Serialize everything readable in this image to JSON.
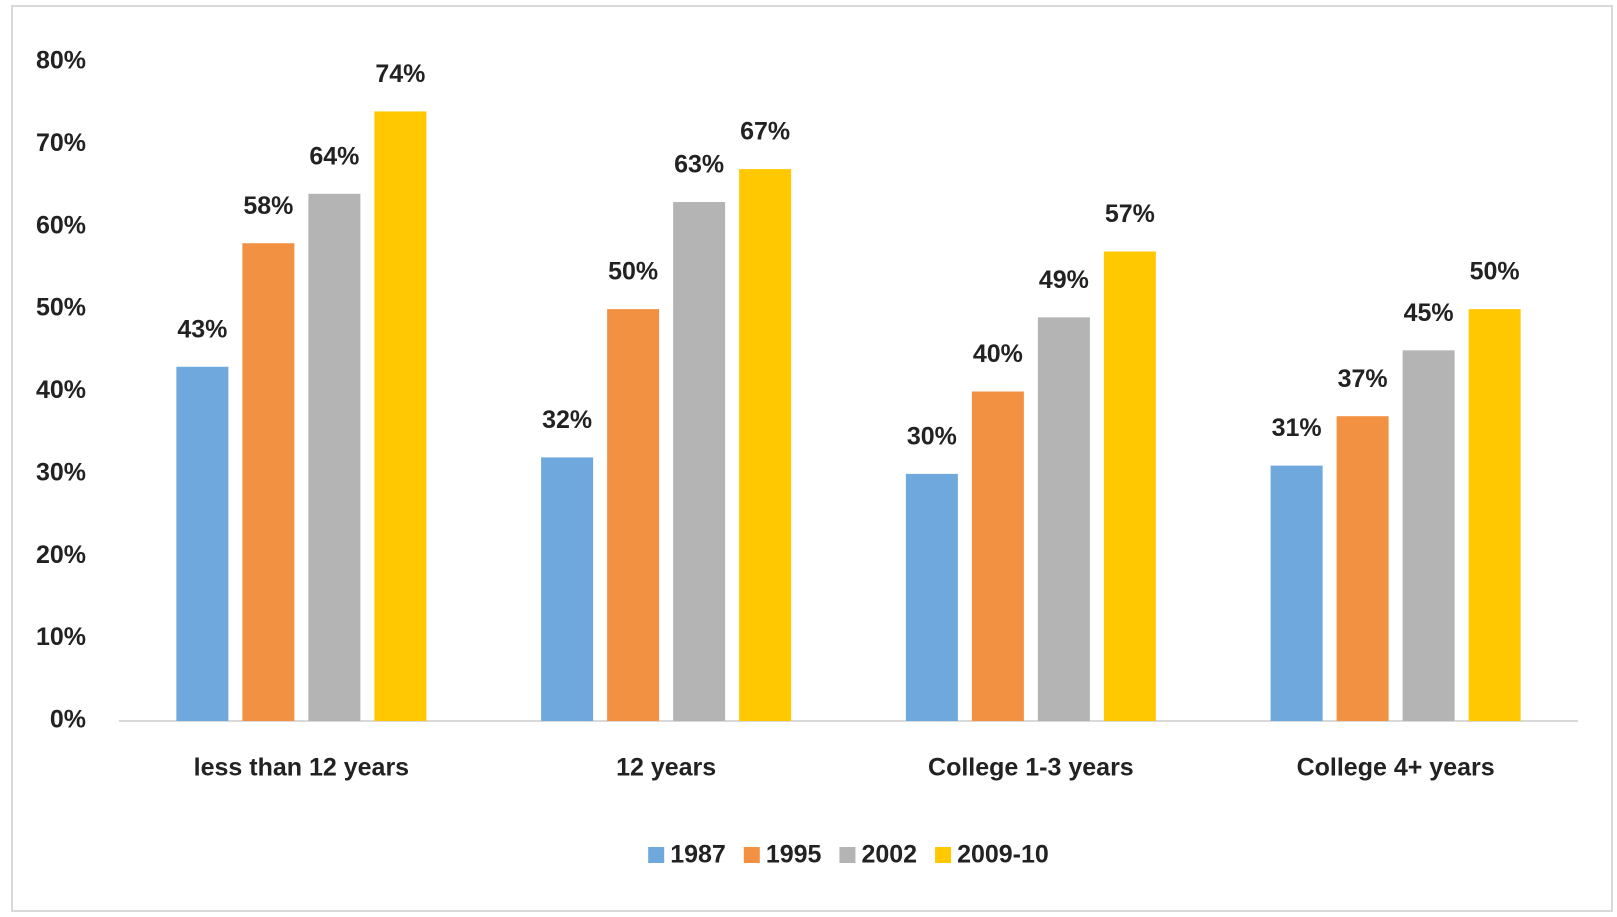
{
  "chart_data": {
    "type": "bar",
    "categories": [
      "less than 12 years",
      "12 years",
      "College 1-3 years",
      "College 4+ years"
    ],
    "series": [
      {
        "name": "1987",
        "color": "#6fa8dc",
        "values": [
          43,
          32,
          30,
          31
        ],
        "value_labels": [
          "43%",
          "32%",
          "30%",
          "31%"
        ]
      },
      {
        "name": "1995",
        "color": "#f39142",
        "values": [
          58,
          50,
          40,
          37
        ],
        "value_labels": [
          "58%",
          "50%",
          "40%",
          "37%"
        ]
      },
      {
        "name": "2002",
        "color": "#b4b4b4",
        "values": [
          64,
          63,
          49,
          45
        ],
        "value_labels": [
          "64%",
          "63%",
          "49%",
          "45%"
        ]
      },
      {
        "name": "2009-10",
        "color": "#ffc800",
        "values": [
          74,
          67,
          57,
          50
        ],
        "value_labels": [
          "74%",
          "67%",
          "57%",
          "50%"
        ]
      }
    ],
    "ylim": [
      0,
      80
    ],
    "yticks": [
      {
        "value": 0,
        "label": "0%"
      },
      {
        "value": 10,
        "label": "10%"
      },
      {
        "value": 20,
        "label": "20%"
      },
      {
        "value": 30,
        "label": "30%"
      },
      {
        "value": 40,
        "label": "40%"
      },
      {
        "value": 50,
        "label": "50%"
      },
      {
        "value": 60,
        "label": "60%"
      },
      {
        "value": 70,
        "label": "70%"
      },
      {
        "value": 80,
        "label": "80%"
      }
    ],
    "grid": false,
    "legend": "bottom"
  }
}
